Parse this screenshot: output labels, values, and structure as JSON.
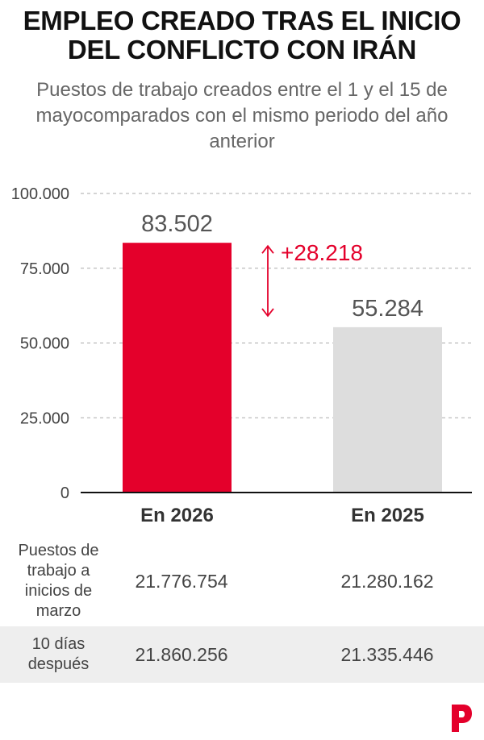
{
  "header": {
    "title": "EMPLEO CREADO TRAS EL INICIO DEL CONFLICTO CON IRÁN",
    "subtitle": "Puestos de trabajo creados entre el 1 y el 15 de mayocomparados con el mismo periodo del año anterior"
  },
  "chart_data": {
    "type": "bar",
    "categories": [
      "En 2026",
      "En 2025"
    ],
    "values": [
      83502,
      55284
    ],
    "value_labels": [
      "83.502",
      "55.284"
    ],
    "ylim": [
      0,
      100000
    ],
    "yticks": [
      0,
      25000,
      50000,
      75000,
      100000
    ],
    "ytick_labels": [
      "0",
      "25.000",
      "50.000",
      "75.000",
      "100.000"
    ],
    "grid": true,
    "colors": [
      "#e4002b",
      "#dddddd"
    ],
    "annotation": {
      "text": "+28.218",
      "from": 83502,
      "to": 55284,
      "color": "#e4002b"
    }
  },
  "table": {
    "rows": [
      {
        "label": "Puestos de trabajo a inicios de marzo",
        "values": [
          "21.776.754",
          "21.280.162"
        ]
      },
      {
        "label": "10 días después",
        "values": [
          "21.860.256",
          "21.335.446"
        ]
      }
    ]
  },
  "brand": {
    "color": "#e4002b",
    "icon": "publisher-logo-icon"
  }
}
